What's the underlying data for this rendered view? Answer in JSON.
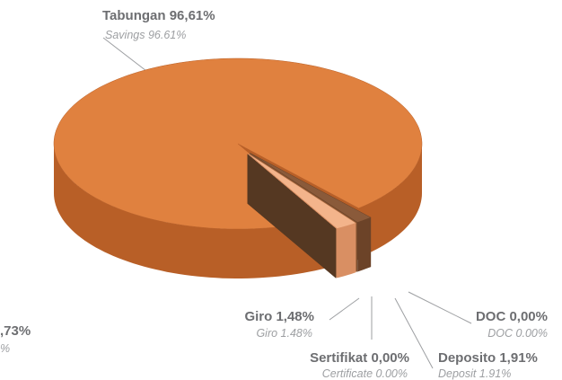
{
  "chart_data": {
    "type": "pie",
    "categories": [
      "Tabungan",
      "Giro",
      "Sertifikat",
      "Deposito",
      "DOC"
    ],
    "categories_en": [
      "Savings",
      "Giro",
      "Certificate",
      "Deposit",
      "DOC"
    ],
    "values": [
      96.61,
      1.48,
      0.0,
      1.91,
      0.0
    ],
    "value_labels": [
      "96,61%",
      "1,48%",
      "0,00%",
      "1,91%",
      "0,00%"
    ],
    "value_labels_en": [
      "96.61%",
      "1.48%",
      "0.00%",
      "1.91%",
      "0.00%"
    ],
    "colors": [
      "#e0813f",
      "#8a5a3a",
      "#b7774a",
      "#f3b48b",
      "#6e4a30"
    ],
    "side_colors": [
      "#b85f27",
      "#6c4328",
      "#8e5a35",
      "#d98f63",
      "#553822"
    ],
    "cropped_labels": [
      ",73%",
      "%"
    ]
  }
}
